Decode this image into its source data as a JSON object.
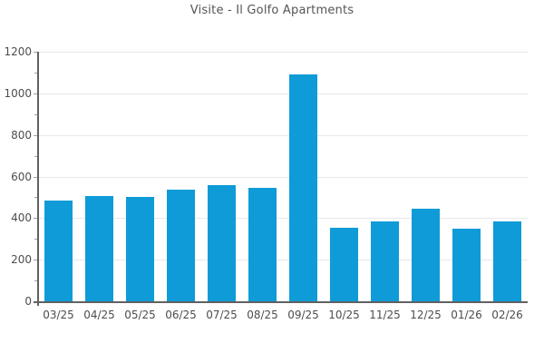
{
  "title": "Visite - Il Golfo Apartments",
  "colors": {
    "bar": "#0f9bd7",
    "grid": "#e8e8e8",
    "axis": "#616161",
    "tick": "#a0a0a0",
    "text": "#4d4d4d"
  },
  "chart_data": {
    "type": "bar",
    "title": "Visite - Il Golfo Apartments",
    "categories": [
      "03/25",
      "04/25",
      "05/25",
      "06/25",
      "07/25",
      "08/25",
      "09/25",
      "10/25",
      "11/25",
      "12/25",
      "01/26",
      "02/26"
    ],
    "values": [
      483,
      508,
      504,
      537,
      559,
      546,
      1091,
      353,
      385,
      446,
      347,
      382
    ],
    "xlabel": "",
    "ylabel": "",
    "ylim": [
      0,
      1200
    ],
    "y_major_step": 200,
    "y_minor_step": 100,
    "y_tick_labels": [
      "0",
      "200",
      "400",
      "600",
      "800",
      "1000",
      "1200"
    ],
    "grid": "horizontal-major",
    "legend": "none"
  }
}
